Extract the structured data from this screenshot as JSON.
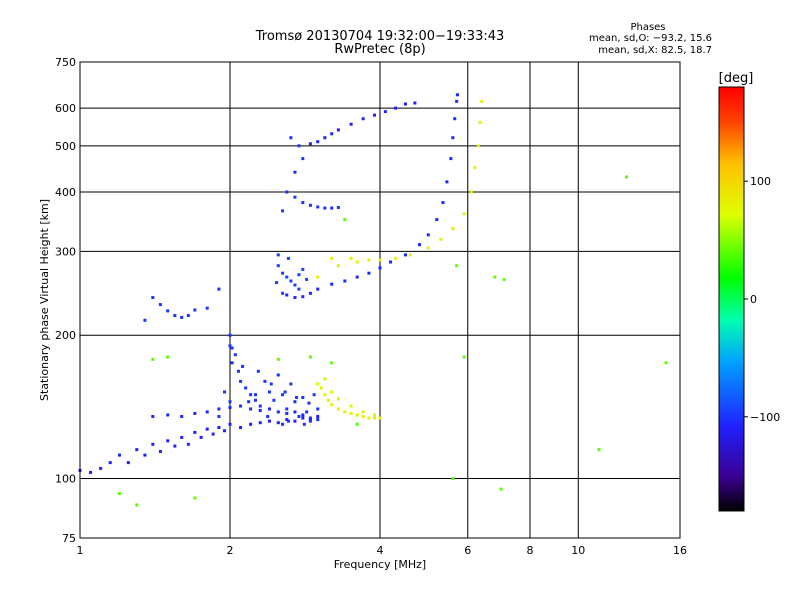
{
  "title_line1": "Tromsø 20130704 19:32:00−19:33:43",
  "title_line2": "RwPretec (8p)",
  "stats": {
    "header": "Phases",
    "line_o": "mean, sd,O: −93.2, 15.6",
    "line_x": "mean, sd,X:  82.5, 18.7"
  },
  "colorbar": {
    "label": "[deg]",
    "tick_labels": [
      "100",
      "0",
      "−100"
    ],
    "tick_values": [
      100,
      0,
      -100
    ],
    "range": [
      -180,
      180
    ]
  },
  "chart_data": {
    "type": "scatter",
    "xlabel": "Frequency [MHz]",
    "ylabel": "Stationary phase Virtual Height [km]",
    "xscale": "log",
    "yscale": "log",
    "xlim": [
      1,
      16
    ],
    "ylim": [
      75,
      750
    ],
    "x_ticks": [
      1,
      2,
      4,
      6,
      8,
      10,
      16
    ],
    "x_tick_labels": [
      "1",
      "2",
      "4",
      "6",
      "8",
      "10",
      "16"
    ],
    "y_ticks": [
      75,
      100,
      200,
      300,
      400,
      500,
      600,
      750
    ],
    "y_tick_labels": [
      "75",
      "100",
      "200",
      "300",
      "400",
      "500",
      "600",
      "750"
    ],
    "grid": true,
    "color_variable": "phase",
    "series": [
      {
        "points": [
          [
            1.0,
            104
          ],
          [
            1.05,
            103
          ],
          [
            1.1,
            105
          ],
          [
            1.15,
            108
          ],
          [
            1.2,
            112
          ],
          [
            1.25,
            108
          ],
          [
            1.3,
            115
          ],
          [
            1.35,
            112
          ],
          [
            1.4,
            118
          ],
          [
            1.45,
            114
          ],
          [
            1.5,
            120
          ],
          [
            1.55,
            117
          ],
          [
            1.6,
            122
          ],
          [
            1.65,
            118
          ],
          [
            1.7,
            125
          ],
          [
            1.75,
            122
          ],
          [
            1.8,
            127
          ],
          [
            1.85,
            124
          ],
          [
            1.9,
            128
          ],
          [
            1.95,
            126
          ],
          [
            2.0,
            130
          ],
          [
            2.1,
            128
          ],
          [
            2.2,
            130
          ],
          [
            2.3,
            131
          ],
          [
            2.4,
            132
          ],
          [
            2.5,
            131
          ],
          [
            2.6,
            133
          ],
          [
            2.7,
            132
          ],
          [
            2.8,
            134
          ],
          [
            2.9,
            133
          ],
          [
            3.0,
            135
          ]
        ],
        "phase": -110
      },
      {
        "points": [
          [
            1.4,
            135
          ],
          [
            1.5,
            136
          ],
          [
            1.6,
            135
          ],
          [
            1.7,
            137
          ],
          [
            1.8,
            138
          ],
          [
            1.9,
            140
          ],
          [
            2.0,
            141
          ],
          [
            2.1,
            142
          ],
          [
            2.2,
            140
          ],
          [
            2.3,
            139
          ],
          [
            2.4,
            140
          ],
          [
            2.5,
            138
          ],
          [
            2.6,
            137
          ],
          [
            2.7,
            138
          ],
          [
            2.8,
            136
          ],
          [
            2.9,
            134
          ],
          [
            3.0,
            133
          ]
        ],
        "phase": -105
      },
      {
        "points": [
          [
            2.0,
            200
          ],
          [
            2.0,
            190
          ],
          [
            2.05,
            182
          ],
          [
            2.02,
            175
          ],
          [
            2.08,
            168
          ],
          [
            2.1,
            160
          ],
          [
            2.15,
            155
          ],
          [
            2.2,
            150
          ],
          [
            2.25,
            146
          ],
          [
            2.3,
            142
          ],
          [
            2.35,
            160
          ],
          [
            2.4,
            152
          ],
          [
            2.45,
            146
          ],
          [
            2.5,
            165
          ],
          [
            2.55,
            150
          ],
          [
            2.6,
            140
          ],
          [
            2.65,
            158
          ],
          [
            2.7,
            145
          ],
          [
            2.75,
            135
          ],
          [
            2.8,
            148
          ],
          [
            2.85,
            138
          ],
          [
            2.9,
            132
          ],
          [
            2.95,
            150
          ],
          [
            3.0,
            140
          ],
          [
            2.02,
            188
          ],
          [
            2.12,
            172
          ],
          [
            2.28,
            168
          ],
          [
            2.42,
            158
          ],
          [
            2.58,
            152
          ],
          [
            2.72,
            148
          ],
          [
            2.88,
            144
          ],
          [
            1.95,
            152
          ],
          [
            2.18,
            145
          ],
          [
            2.38,
            135
          ],
          [
            2.62,
            132
          ],
          [
            2.82,
            130
          ],
          [
            1.9,
            135
          ],
          [
            2.0,
            145
          ],
          [
            2.25,
            150
          ],
          [
            2.55,
            130
          ]
        ],
        "phase": -100
      },
      {
        "points": [
          [
            3.0,
            158
          ],
          [
            3.05,
            155
          ],
          [
            3.1,
            150
          ],
          [
            3.15,
            146
          ],
          [
            3.2,
            143
          ],
          [
            3.3,
            140
          ],
          [
            3.4,
            138
          ],
          [
            3.5,
            137
          ],
          [
            3.6,
            136
          ],
          [
            3.7,
            135
          ],
          [
            3.8,
            134
          ],
          [
            3.9,
            134
          ],
          [
            4.0,
            134
          ],
          [
            3.1,
            162
          ],
          [
            3.2,
            152
          ],
          [
            3.3,
            147
          ],
          [
            3.5,
            142
          ],
          [
            3.7,
            138
          ],
          [
            3.9,
            136
          ]
        ],
        "phase": 80
      },
      {
        "points": [
          [
            2.6,
            243
          ],
          [
            2.7,
            240
          ],
          [
            2.8,
            241
          ],
          [
            2.9,
            245
          ],
          [
            3.0,
            250
          ],
          [
            3.2,
            256
          ],
          [
            3.4,
            260
          ],
          [
            3.6,
            265
          ],
          [
            3.8,
            270
          ],
          [
            4.0,
            277
          ],
          [
            4.2,
            285
          ],
          [
            4.5,
            295
          ],
          [
            4.8,
            310
          ],
          [
            5.0,
            325
          ],
          [
            5.2,
            350
          ],
          [
            5.35,
            380
          ],
          [
            5.45,
            420
          ],
          [
            5.55,
            470
          ],
          [
            5.6,
            520
          ],
          [
            5.65,
            570
          ],
          [
            5.7,
            620
          ],
          [
            5.72,
            640
          ]
        ],
        "phase": -105
      },
      {
        "points": [
          [
            3.2,
            290
          ],
          [
            3.5,
            290
          ],
          [
            3.8,
            288
          ],
          [
            4.0,
            288
          ],
          [
            4.3,
            290
          ],
          [
            4.6,
            295
          ],
          [
            5.0,
            305
          ],
          [
            5.3,
            318
          ],
          [
            5.6,
            335
          ],
          [
            5.9,
            360
          ],
          [
            6.1,
            400
          ],
          [
            6.2,
            450
          ],
          [
            6.3,
            500
          ],
          [
            6.35,
            560
          ],
          [
            6.4,
            620
          ],
          [
            3.0,
            265
          ],
          [
            3.3,
            280
          ],
          [
            3.6,
            285
          ]
        ],
        "phase": 80
      },
      {
        "points": [
          [
            2.5,
            295
          ],
          [
            2.5,
            280
          ],
          [
            2.55,
            270
          ],
          [
            2.6,
            265
          ],
          [
            2.65,
            260
          ],
          [
            2.7,
            255
          ],
          [
            2.75,
            250
          ],
          [
            2.8,
            275
          ],
          [
            2.85,
            262
          ],
          [
            2.55,
            245
          ],
          [
            2.75,
            268
          ],
          [
            2.62,
            290
          ],
          [
            2.48,
            258
          ]
        ],
        "phase": -95
      },
      {
        "points": [
          [
            2.9,
            505
          ],
          [
            3.0,
            510
          ],
          [
            3.1,
            520
          ],
          [
            3.2,
            530
          ],
          [
            3.3,
            540
          ],
          [
            3.5,
            555
          ],
          [
            3.7,
            570
          ],
          [
            3.9,
            580
          ],
          [
            4.1,
            590
          ],
          [
            4.3,
            600
          ],
          [
            4.5,
            612
          ],
          [
            4.7,
            615
          ]
        ],
        "phase": -110
      },
      {
        "points": [
          [
            2.6,
            400
          ],
          [
            2.7,
            390
          ],
          [
            2.8,
            380
          ],
          [
            2.9,
            375
          ],
          [
            3.0,
            372
          ],
          [
            3.1,
            370
          ],
          [
            3.2,
            370
          ],
          [
            3.3,
            371
          ],
          [
            2.55,
            365
          ],
          [
            2.7,
            440
          ],
          [
            2.8,
            470
          ],
          [
            2.65,
            520
          ],
          [
            2.75,
            500
          ]
        ],
        "phase": -100
      },
      {
        "points": [
          [
            1.45,
            232
          ],
          [
            1.5,
            225
          ],
          [
            1.55,
            220
          ],
          [
            1.6,
            218
          ],
          [
            1.65,
            220
          ],
          [
            1.7,
            226
          ],
          [
            1.4,
            240
          ],
          [
            1.35,
            215
          ],
          [
            1.8,
            228
          ],
          [
            1.9,
            250
          ]
        ],
        "phase": -100
      },
      {
        "points": [
          [
            12.5,
            430
          ],
          [
            15,
            175
          ],
          [
            11,
            115
          ],
          [
            7.0,
            95
          ],
          [
            5.6,
            100
          ],
          [
            1.2,
            93
          ],
          [
            1.3,
            88
          ],
          [
            1.7,
            91
          ],
          [
            6.8,
            265
          ],
          [
            7.1,
            262
          ],
          [
            5.7,
            280
          ],
          [
            5.9,
            180
          ],
          [
            3.4,
            350
          ],
          [
            3.2,
            175
          ],
          [
            2.9,
            180
          ],
          [
            2.5,
            178
          ],
          [
            1.5,
            180
          ],
          [
            1.4,
            178
          ],
          [
            3.6,
            130
          ]
        ],
        "phase": 40
      }
    ]
  }
}
